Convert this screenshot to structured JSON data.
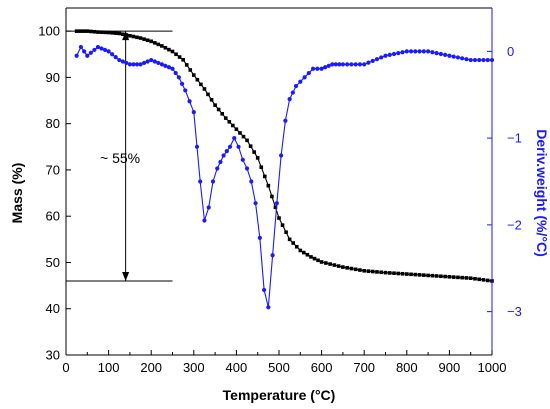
{
  "chart_data": {
    "type": "line",
    "xlabel": "Temperature (°C)",
    "ylabel_left": "Mass (%)",
    "ylabel_right": "Deriv.weight (%/°C)",
    "annotation": "~ 55%",
    "colors": {
      "mass": "#000000",
      "deriv": "#1a1aff",
      "axis": "#000000",
      "right_axis": "#1a1aff"
    },
    "xlim": [
      0,
      1000
    ],
    "ylim_left": [
      30,
      105
    ],
    "ylim_right": [
      -3.5,
      0.5
    ],
    "x_ticks": [
      0,
      100,
      200,
      300,
      400,
      500,
      600,
      700,
      800,
      900,
      1000
    ],
    "y_ticks_left": [
      30,
      40,
      50,
      60,
      70,
      80,
      90,
      100
    ],
    "y_ticks_right": [
      -3,
      -2,
      -1,
      0
    ],
    "y_tick_labels_right": [
      "−3",
      "−2",
      "−1",
      "0"
    ],
    "reference_lines": [
      {
        "y": 100,
        "x_start": 0,
        "x_end": 250
      },
      {
        "y": 46,
        "x_start": 0,
        "x_end": 250
      }
    ],
    "arrow": {
      "x": 140,
      "y_top": 100,
      "y_bottom": 46
    },
    "series": [
      {
        "axis": "left",
        "marker": "square",
        "x": [
          25,
          50,
          75,
          100,
          125,
          150,
          175,
          200,
          225,
          250,
          275,
          300,
          325,
          350,
          375,
          400,
          425,
          450,
          475,
          500,
          525,
          550,
          575,
          600,
          650,
          700,
          750,
          800,
          850,
          900,
          950,
          1000
        ],
        "values": [
          100,
          100,
          99.8,
          99.7,
          99.5,
          99,
          98.5,
          97.8,
          96.8,
          95.6,
          93.8,
          90.5,
          87.5,
          84,
          81.2,
          78.8,
          76.4,
          72.6,
          66.6,
          59.6,
          55,
          52.6,
          51.2,
          50.1,
          49,
          48.2,
          47.8,
          47.5,
          47.2,
          46.9,
          46.6,
          46
        ]
      },
      {
        "axis": "right",
        "marker": "circle",
        "x": [
          25,
          35,
          50,
          75,
          100,
          125,
          150,
          175,
          200,
          225,
          250,
          265,
          280,
          300,
          315,
          325,
          335,
          345,
          355,
          370,
          385,
          395,
          405,
          415,
          425,
          435,
          445,
          455,
          465,
          475,
          485,
          495,
          505,
          515,
          525,
          540,
          560,
          580,
          600,
          625,
          650,
          700,
          750,
          800,
          850,
          900,
          950,
          1000
        ],
        "values": [
          -0.05,
          0.05,
          -0.05,
          0.05,
          0,
          -0.1,
          -0.15,
          -0.15,
          -0.1,
          -0.15,
          -0.2,
          -0.3,
          -0.45,
          -0.7,
          -1.5,
          -1.95,
          -1.8,
          -1.5,
          -1.35,
          -1.2,
          -1.1,
          -1.0,
          -1.1,
          -1.25,
          -1.35,
          -1.5,
          -1.75,
          -2.15,
          -2.75,
          -2.95,
          -2.35,
          -1.75,
          -1.2,
          -0.8,
          -0.55,
          -0.4,
          -0.3,
          -0.2,
          -0.2,
          -0.15,
          -0.15,
          -0.15,
          -0.05,
          0,
          0,
          -0.05,
          -0.1,
          -0.1
        ]
      }
    ]
  }
}
